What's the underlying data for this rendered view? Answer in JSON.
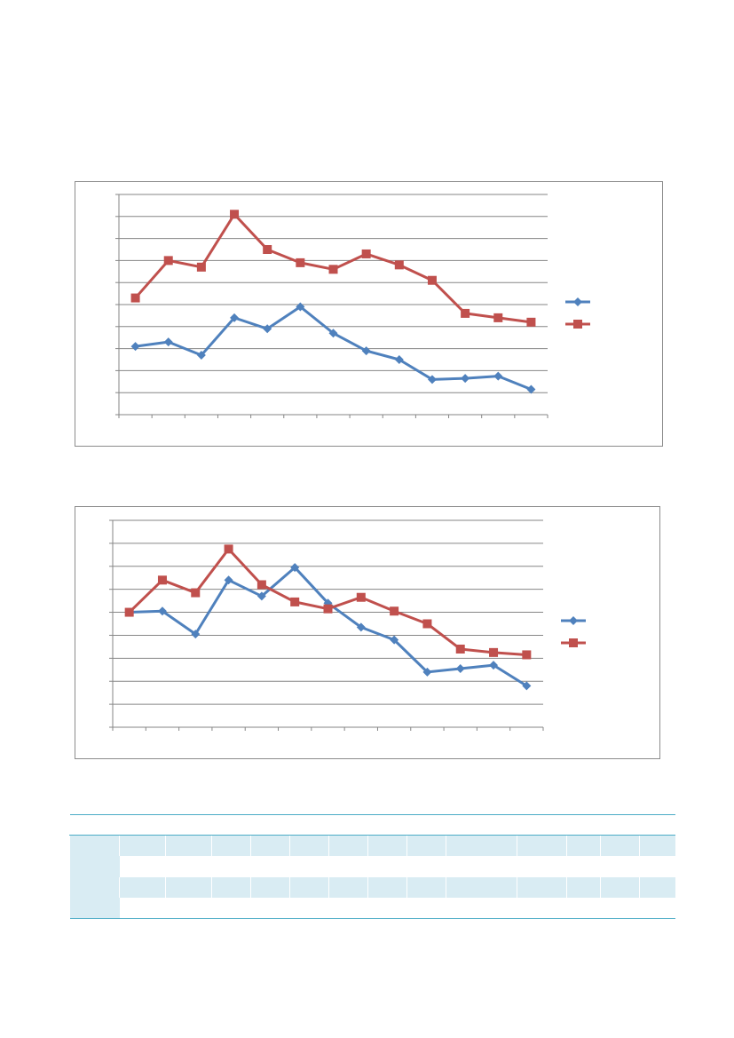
{
  "charts": [
    {
      "type": "line",
      "grid": true,
      "legend_position": "right",
      "ylim": [
        0,
        10
      ],
      "x_count": 13,
      "series": [
        {
          "color": "#4f81bd",
          "marker": "diamond",
          "values": [
            3.1,
            3.3,
            2.7,
            4.4,
            3.9,
            4.9,
            3.7,
            2.9,
            2.5,
            1.6,
            1.65,
            1.75,
            1.15
          ]
        },
        {
          "color": "#c0504d",
          "marker": "square",
          "values": [
            5.3,
            7.0,
            6.7,
            9.1,
            7.5,
            6.9,
            6.6,
            7.3,
            6.8,
            6.1,
            4.6,
            4.4,
            4.2
          ]
        }
      ]
    },
    {
      "type": "line",
      "grid": true,
      "legend_position": "right",
      "ylim": [
        0,
        9
      ],
      "x_count": 13,
      "series": [
        {
          "color": "#4f81bd",
          "marker": "diamond",
          "values": [
            5.0,
            5.05,
            4.05,
            6.4,
            5.7,
            6.95,
            5.4,
            4.35,
            3.8,
            2.4,
            2.55,
            2.7,
            1.8
          ]
        },
        {
          "color": "#c0504d",
          "marker": "square",
          "values": [
            5.0,
            6.4,
            5.85,
            7.75,
            6.2,
            5.45,
            5.15,
            5.65,
            5.05,
            4.5,
            3.4,
            3.25,
            3.15
          ]
        }
      ]
    }
  ]
}
